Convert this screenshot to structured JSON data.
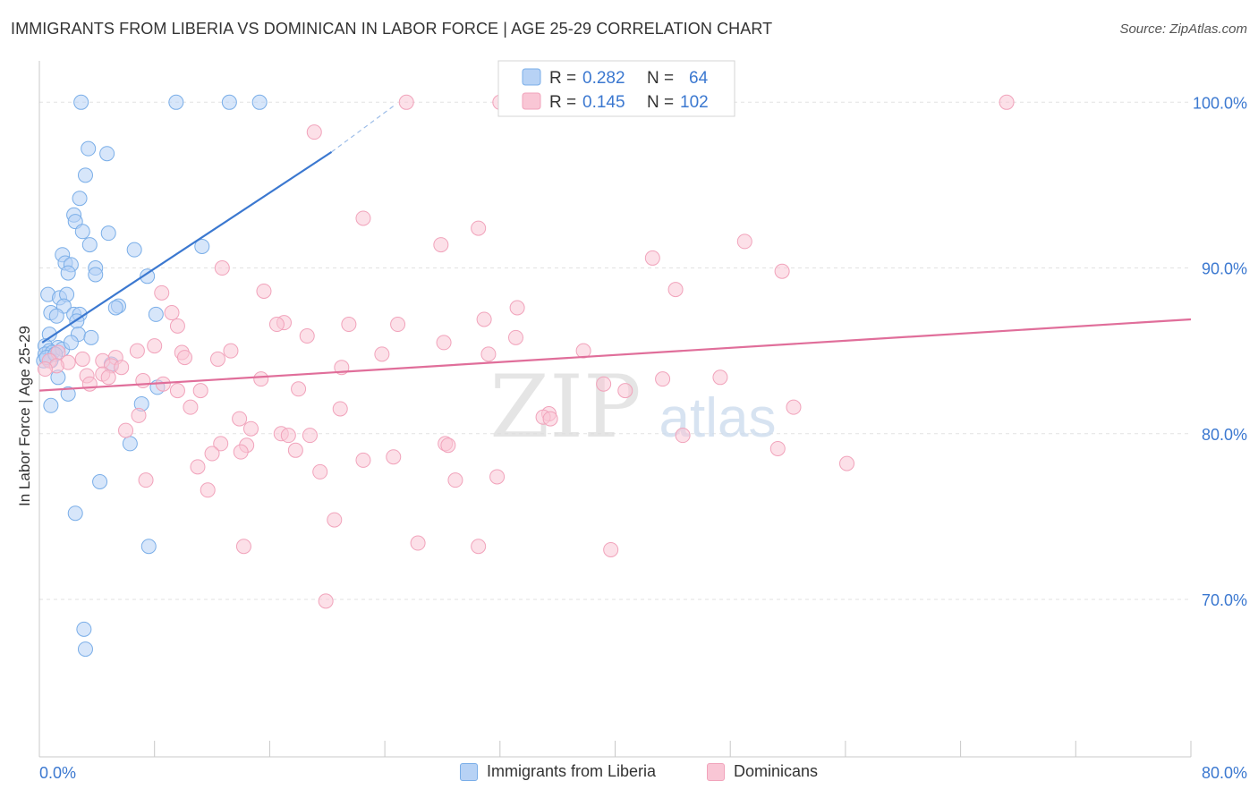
{
  "title": "IMMIGRANTS FROM LIBERIA VS DOMINICAN IN LABOR FORCE | AGE 25-29 CORRELATION CHART",
  "source": "Source: ZipAtlas.com",
  "watermark": {
    "zip": "ZIP",
    "atlas": "atlas"
  },
  "chart_data": {
    "type": "scatter",
    "ylabel": "In Labor Force | Age 25-29",
    "xlabel": "",
    "xlim": [
      0,
      80
    ],
    "ylim": [
      60.5,
      102.5
    ],
    "x_tick_labels": {
      "left": "0.0%",
      "right": "80.0%"
    },
    "y_ticks": [
      70,
      80,
      90,
      100
    ],
    "y_tick_labels": [
      "70.0%",
      "80.0%",
      "90.0%",
      "100.0%"
    ],
    "grid": true,
    "legend_position": "top-center",
    "series": [
      {
        "name": "Immigrants from Liberia",
        "color": "#7aaee8",
        "line_color": "#3b78d0",
        "stats": {
          "r_label": "R =",
          "r": "0.282",
          "n_label": "N =",
          "n": "64"
        },
        "trend": {
          "x0": 0.2,
          "y0": 85.5,
          "x1": 20.3,
          "y1": 97.0,
          "dash_x1": 24.8,
          "dash_y1": 99.9
        },
        "points": [
          [
            2.9,
            100
          ],
          [
            9.5,
            100
          ],
          [
            13.2,
            100
          ],
          [
            15.3,
            100
          ],
          [
            3.4,
            97.2
          ],
          [
            4.7,
            96.9
          ],
          [
            3.2,
            95.6
          ],
          [
            2.8,
            94.2
          ],
          [
            2.4,
            93.2
          ],
          [
            2.5,
            92.8
          ],
          [
            3.0,
            92.2
          ],
          [
            4.8,
            92.1
          ],
          [
            3.5,
            91.4
          ],
          [
            6.6,
            91.1
          ],
          [
            11.3,
            91.3
          ],
          [
            1.6,
            90.8
          ],
          [
            1.8,
            90.3
          ],
          [
            2.2,
            90.2
          ],
          [
            3.9,
            90.0
          ],
          [
            2.0,
            89.7
          ],
          [
            3.9,
            89.6
          ],
          [
            7.5,
            89.5
          ],
          [
            0.6,
            88.4
          ],
          [
            1.4,
            88.2
          ],
          [
            1.9,
            88.4
          ],
          [
            1.7,
            87.7
          ],
          [
            5.5,
            87.7
          ],
          [
            5.3,
            87.6
          ],
          [
            0.8,
            87.3
          ],
          [
            1.2,
            87.1
          ],
          [
            2.4,
            87.2
          ],
          [
            2.8,
            87.2
          ],
          [
            8.1,
            87.2
          ],
          [
            2.6,
            86.8
          ],
          [
            0.7,
            86.0
          ],
          [
            2.7,
            86.0
          ],
          [
            0.4,
            85.3
          ],
          [
            1.3,
            85.2
          ],
          [
            3.6,
            85.8
          ],
          [
            0.7,
            85.0
          ],
          [
            0.4,
            84.8
          ],
          [
            0.9,
            84.9
          ],
          [
            1.6,
            85.1
          ],
          [
            0.8,
            84.4
          ],
          [
            0.3,
            84.4
          ],
          [
            2.2,
            85.5
          ],
          [
            5.0,
            84.2
          ],
          [
            1.3,
            83.4
          ],
          [
            8.2,
            82.8
          ],
          [
            2.0,
            82.4
          ],
          [
            0.8,
            81.7
          ],
          [
            7.1,
            81.8
          ],
          [
            6.3,
            79.4
          ],
          [
            4.2,
            77.1
          ],
          [
            2.5,
            75.2
          ],
          [
            7.6,
            73.2
          ],
          [
            3.1,
            68.2
          ],
          [
            3.2,
            67.0
          ],
          [
            0.5,
            84.6
          ],
          [
            1.1,
            84.8
          ]
        ]
      },
      {
        "name": "Dominicans",
        "color": "#f1a3bb",
        "line_color": "#e06e9a",
        "stats": {
          "r_label": "R =",
          "r": "0.145",
          "n_label": "N =",
          "n": "102"
        },
        "trend": {
          "x0": 0.0,
          "y0": 82.6,
          "x1": 80.0,
          "y1": 86.9
        },
        "points": [
          [
            25.5,
            100
          ],
          [
            32.0,
            100
          ],
          [
            67.2,
            100
          ],
          [
            19.1,
            98.2
          ],
          [
            22.5,
            93.0
          ],
          [
            30.5,
            92.4
          ],
          [
            27.9,
            91.4
          ],
          [
            49.0,
            91.6
          ],
          [
            42.6,
            90.6
          ],
          [
            12.7,
            90.0
          ],
          [
            51.6,
            89.8
          ],
          [
            15.6,
            88.6
          ],
          [
            8.5,
            88.5
          ],
          [
            44.2,
            88.7
          ],
          [
            33.2,
            87.6
          ],
          [
            9.2,
            87.3
          ],
          [
            17.0,
            86.7
          ],
          [
            16.5,
            86.6
          ],
          [
            30.9,
            86.9
          ],
          [
            21.5,
            86.6
          ],
          [
            24.9,
            86.6
          ],
          [
            9.6,
            86.5
          ],
          [
            18.6,
            85.9
          ],
          [
            33.1,
            85.8
          ],
          [
            28.1,
            85.5
          ],
          [
            8.0,
            85.3
          ],
          [
            6.8,
            85.0
          ],
          [
            9.9,
            84.9
          ],
          [
            13.3,
            85.0
          ],
          [
            23.8,
            84.8
          ],
          [
            31.2,
            84.8
          ],
          [
            37.8,
            85.0
          ],
          [
            12.4,
            84.5
          ],
          [
            10.1,
            84.6
          ],
          [
            5.3,
            84.6
          ],
          [
            1.3,
            84.9
          ],
          [
            3.0,
            84.5
          ],
          [
            4.4,
            84.4
          ],
          [
            2.0,
            84.3
          ],
          [
            0.7,
            84.4
          ],
          [
            1.2,
            84.1
          ],
          [
            5.0,
            84.1
          ],
          [
            5.7,
            84.0
          ],
          [
            21.0,
            84.0
          ],
          [
            3.3,
            83.5
          ],
          [
            4.4,
            83.6
          ],
          [
            4.8,
            83.4
          ],
          [
            7.2,
            83.2
          ],
          [
            15.4,
            83.3
          ],
          [
            8.6,
            83.0
          ],
          [
            3.5,
            83.0
          ],
          [
            39.2,
            83.0
          ],
          [
            43.3,
            83.3
          ],
          [
            47.3,
            83.4
          ],
          [
            40.7,
            82.6
          ],
          [
            11.2,
            82.6
          ],
          [
            9.6,
            82.6
          ],
          [
            18.0,
            82.7
          ],
          [
            10.5,
            81.6
          ],
          [
            20.9,
            81.5
          ],
          [
            35.4,
            81.2
          ],
          [
            35.0,
            81.0
          ],
          [
            35.5,
            80.9
          ],
          [
            13.9,
            80.9
          ],
          [
            6.9,
            81.1
          ],
          [
            52.4,
            81.6
          ],
          [
            6.0,
            80.2
          ],
          [
            14.7,
            80.3
          ],
          [
            16.8,
            80.0
          ],
          [
            17.3,
            79.9
          ],
          [
            18.8,
            79.9
          ],
          [
            44.7,
            79.9
          ],
          [
            12.6,
            79.4
          ],
          [
            14.4,
            79.3
          ],
          [
            28.2,
            79.4
          ],
          [
            28.4,
            79.3
          ],
          [
            12.0,
            78.8
          ],
          [
            14.0,
            78.9
          ],
          [
            17.8,
            79.0
          ],
          [
            22.5,
            78.4
          ],
          [
            24.6,
            78.6
          ],
          [
            11.0,
            78.0
          ],
          [
            19.5,
            77.7
          ],
          [
            51.3,
            79.1
          ],
          [
            56.1,
            78.2
          ],
          [
            7.4,
            77.2
          ],
          [
            28.9,
            77.2
          ],
          [
            31.8,
            77.4
          ],
          [
            11.7,
            76.6
          ],
          [
            20.5,
            74.8
          ],
          [
            14.2,
            73.2
          ],
          [
            26.3,
            73.4
          ],
          [
            30.5,
            73.2
          ],
          [
            39.7,
            73.0
          ],
          [
            19.9,
            69.9
          ],
          [
            0.4,
            83.9
          ]
        ]
      }
    ]
  }
}
